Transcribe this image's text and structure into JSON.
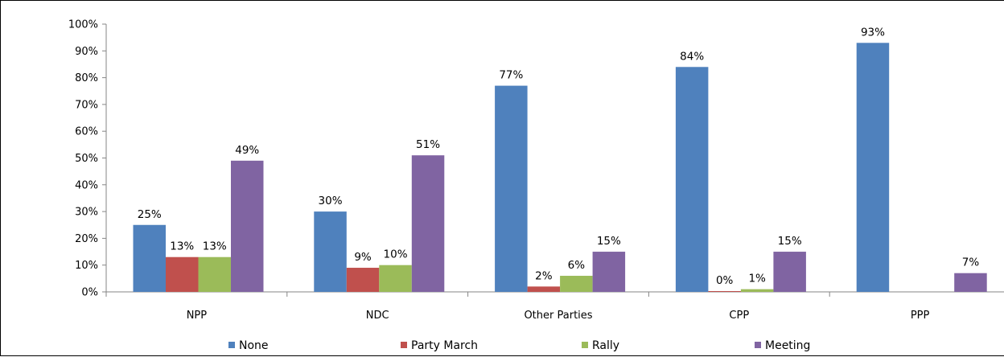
{
  "chart_data": {
    "type": "bar",
    "title": "",
    "xlabel": "",
    "ylabel": "",
    "ylim": [
      0,
      100
    ],
    "y_ticks": [
      0,
      10,
      20,
      30,
      40,
      50,
      60,
      70,
      80,
      90,
      100
    ],
    "y_tick_labels": [
      "0%",
      "10%",
      "20%",
      "30%",
      "40%",
      "50%",
      "60%",
      "70%",
      "80%",
      "90%",
      "100%"
    ],
    "grid": false,
    "legend_position": "bottom",
    "categories": [
      "NPP",
      "NDC",
      "Other Parties",
      "CPP",
      "PPP"
    ],
    "series": [
      {
        "name": "None",
        "color": "#4f81bd",
        "values": [
          25,
          30,
          77,
          84,
          93
        ],
        "labels": [
          "25%",
          "30%",
          "77%",
          "84%",
          "93%"
        ]
      },
      {
        "name": "Party March",
        "color": "#c0504d",
        "values": [
          13,
          9,
          2,
          0,
          null
        ],
        "labels": [
          "13%",
          "9%",
          "2%",
          "0%",
          ""
        ]
      },
      {
        "name": "Rally",
        "color": "#9bbb59",
        "values": [
          13,
          10,
          6,
          1,
          null
        ],
        "labels": [
          "13%",
          "10%",
          "6%",
          "1%",
          ""
        ]
      },
      {
        "name": "Meeting",
        "color": "#8064a2",
        "values": [
          49,
          51,
          15,
          15,
          7
        ],
        "labels": [
          "49%",
          "51%",
          "15%",
          "15%",
          "7%"
        ]
      }
    ]
  }
}
